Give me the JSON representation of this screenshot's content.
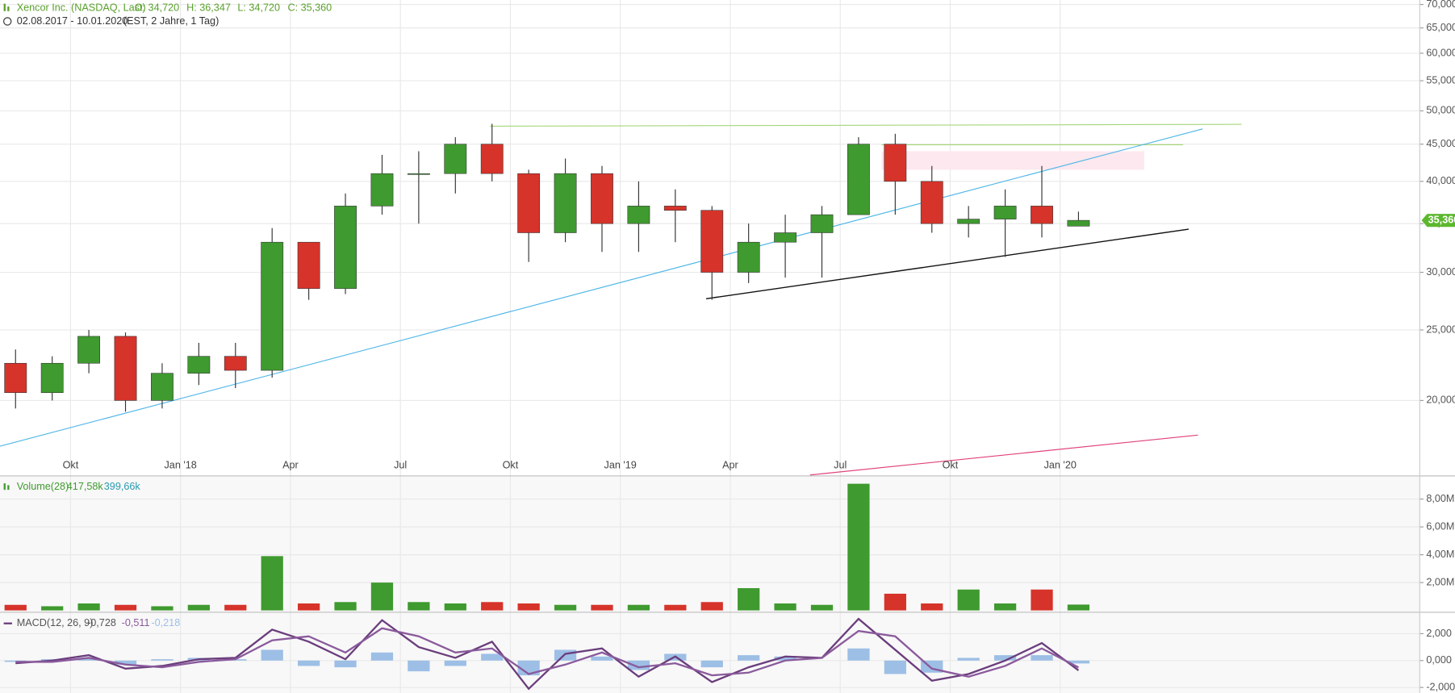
{
  "header": {
    "title": "Xencor Inc. (NASDAQ, Last)",
    "open": "O: 34,720",
    "high": "H: 36,347",
    "low": "L: 34,720",
    "close": "C: 35,360",
    "range": "02.08.2017 - 10.01.2020",
    "info": "(EST, 2 Jahre, 1 Tag)"
  },
  "chart_data": [
    {
      "type": "candlestick",
      "log_scale": true,
      "grid": true,
      "up_color": "#3f9a2f",
      "down_color": "#d6332a",
      "categories": [
        null,
        null,
        "Okt",
        null,
        null,
        "Jan '18",
        null,
        null,
        "Apr",
        null,
        null,
        "Jul",
        null,
        null,
        "Okt",
        null,
        null,
        "Jan '19",
        null,
        null,
        "Apr",
        null,
        null,
        "Jul",
        null,
        null,
        "Okt",
        null,
        null,
        "Jan '20",
        null,
        null,
        null,
        null,
        null,
        null,
        null,
        null,
        null
      ],
      "open": [
        22.5,
        20.5,
        22.5,
        24.5,
        20,
        21.8,
        23,
        22,
        33,
        28.5,
        37,
        41,
        41,
        45,
        41,
        34,
        41,
        35,
        37,
        36.5,
        30,
        33,
        34,
        36,
        45,
        40,
        35,
        35.5,
        37,
        34.72,
        null,
        null,
        null,
        null,
        null,
        null,
        null,
        null,
        null
      ],
      "high": [
        23.5,
        23,
        25,
        24.8,
        22.5,
        24,
        24,
        34.5,
        33,
        38.5,
        43.5,
        44,
        46,
        48,
        41.5,
        43,
        42,
        40,
        39,
        37,
        35,
        36,
        37,
        46,
        46.5,
        42,
        37,
        39,
        42,
        36.347,
        null,
        null,
        null,
        null,
        null,
        null,
        null,
        null,
        null
      ],
      "low": [
        19.5,
        20,
        21.8,
        19.3,
        19.5,
        21,
        20.8,
        21.5,
        27.5,
        28,
        36,
        35,
        38.5,
        40,
        31,
        33,
        32,
        32,
        33,
        27.5,
        29,
        29.5,
        29.5,
        36,
        36,
        34,
        33.5,
        31.5,
        33.5,
        34.72,
        null,
        null,
        null,
        null,
        null,
        null,
        null,
        null,
        null
      ],
      "close": [
        20.5,
        22.5,
        24.5,
        20,
        21.8,
        23,
        22,
        33,
        28.5,
        37,
        41,
        41,
        45,
        41,
        34,
        41,
        35,
        37,
        36.5,
        30,
        33,
        34,
        36,
        45,
        40,
        35,
        35.5,
        37,
        35,
        35.36,
        null,
        null,
        null,
        null,
        null,
        null,
        null,
        null,
        null
      ],
      "ylim": [
        15.8,
        71
      ],
      "yticks": [
        {
          "value": 20,
          "label": "20,000"
        },
        {
          "value": 25,
          "label": "25,000"
        },
        {
          "value": 30,
          "label": "30,000"
        },
        {
          "value": 35,
          "label": "35,000"
        },
        {
          "value": 40,
          "label": "40,000"
        },
        {
          "value": 45,
          "label": "45,000"
        },
        {
          "value": 50,
          "label": "50,000"
        },
        {
          "value": 55,
          "label": "55,000"
        },
        {
          "value": 60,
          "label": "60,000"
        },
        {
          "value": 65,
          "label": "65,000"
        },
        {
          "value": 70,
          "label": "70,000"
        }
      ],
      "last": {
        "value": 35.36,
        "label": "35,360",
        "color": "#5cb82e"
      }
    },
    {
      "type": "bar",
      "title": "Volume(28)",
      "readouts": [
        "417,58k",
        "399,66k"
      ],
      "grid": true,
      "values": [
        0.4,
        0.3,
        0.5,
        0.4,
        0.3,
        0.4,
        0.4,
        3.9,
        0.5,
        0.6,
        2.0,
        0.6,
        0.5,
        0.6,
        0.5,
        0.4,
        0.4,
        0.4,
        0.4,
        0.6,
        1.6,
        0.5,
        0.4,
        9.1,
        1.2,
        0.5,
        1.5,
        0.5,
        1.5,
        0.42
      ],
      "ylim": [
        0,
        9.53
      ],
      "yticks": [
        {
          "value": 2,
          "label": "2,00M"
        },
        {
          "value": 4,
          "label": "4,00M"
        },
        {
          "value": 6,
          "label": "6,00M"
        },
        {
          "value": 8,
          "label": "8,00M"
        }
      ]
    },
    {
      "type": "macd",
      "title": "MACD(12, 26, 9)",
      "readouts": [
        "-0,728",
        "-0,511",
        "-0,218"
      ],
      "grid": true,
      "macd": [
        -0.2,
        0.0,
        0.4,
        -0.6,
        -0.4,
        0.1,
        0.2,
        2.3,
        1.4,
        0.1,
        3.0,
        1.0,
        0.2,
        1.4,
        -2.1,
        0.5,
        0.9,
        -1.2,
        0.3,
        -1.6,
        -0.5,
        0.3,
        0.2,
        3.1,
        0.8,
        -1.5,
        -1.0,
        0.0,
        1.3,
        -0.728
      ],
      "signal": [
        -0.1,
        -0.1,
        0.2,
        -0.3,
        -0.5,
        -0.1,
        0.1,
        1.5,
        1.8,
        0.6,
        2.4,
        1.8,
        0.6,
        0.9,
        -1.0,
        -0.3,
        0.6,
        -0.5,
        -0.2,
        -1.1,
        -0.9,
        0.0,
        0.2,
        2.2,
        1.8,
        -0.6,
        -1.2,
        -0.4,
        0.9,
        -0.511
      ],
      "histogram": [
        -0.1,
        0.1,
        0.2,
        -0.3,
        0.1,
        0.2,
        0.1,
        0.8,
        -0.4,
        -0.5,
        0.6,
        -0.8,
        -0.4,
        0.5,
        -1.1,
        0.8,
        0.3,
        -0.7,
        0.5,
        -0.5,
        0.4,
        0.3,
        0.0,
        0.9,
        -1.0,
        -0.9,
        0.2,
        0.4,
        0.4,
        -0.218
      ],
      "macd_color": "#6a3d7c",
      "signal_color": "#8a5a9c",
      "histogram_color": "#9dbfe6",
      "ylim": [
        -2.41,
        3.45
      ],
      "yticks": [
        {
          "value": -2,
          "label": "-2,000"
        },
        {
          "value": 0,
          "label": "0,000"
        },
        {
          "value": 2,
          "label": "2,000"
        }
      ]
    }
  ]
}
